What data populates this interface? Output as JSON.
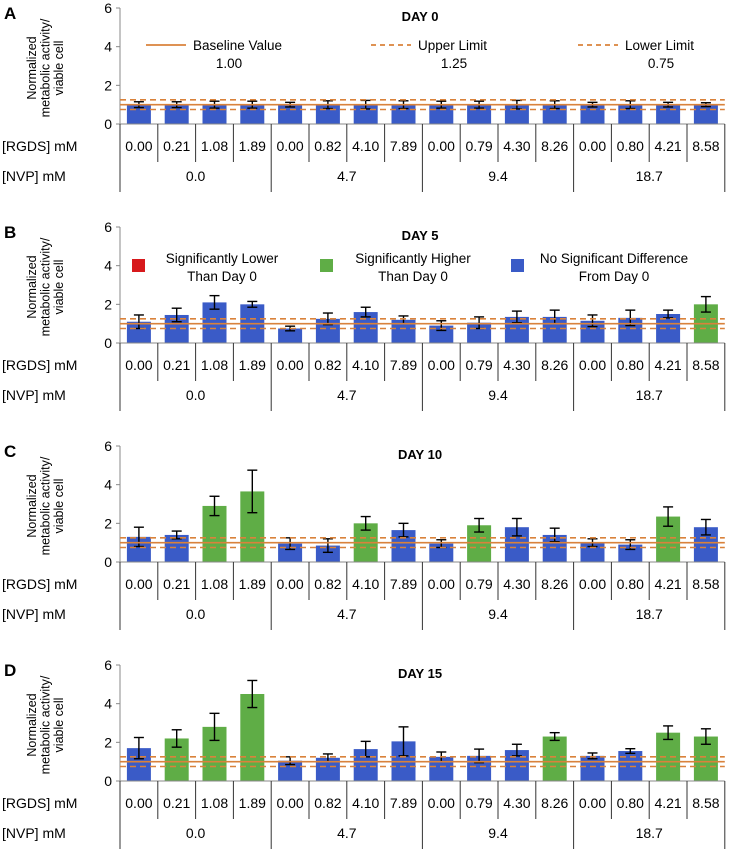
{
  "chart_data": {
    "type": "bar",
    "ylabel_lines": [
      "Normalized",
      "metabolic activity/",
      "viable cell"
    ],
    "ylim": [
      0,
      6
    ],
    "yticks": [
      0,
      2,
      4,
      6
    ],
    "row_labels": {
      "rgds": "[RGDS] mM",
      "nvp": "[NVP] mM"
    },
    "rgds": [
      "0.00",
      "0.21",
      "1.08",
      "1.89",
      "0.00",
      "0.82",
      "4.10",
      "7.89",
      "0.00",
      "0.79",
      "4.30",
      "8.26",
      "0.00",
      "0.80",
      "4.21",
      "8.58"
    ],
    "nvp": [
      "0.0",
      "4.7",
      "9.4",
      "18.7"
    ],
    "reference_lines": {
      "baseline": {
        "label": "Baseline Value",
        "value_label": "1.00",
        "value": 1.0
      },
      "upper": {
        "label": "Upper Limit",
        "value_label": "1.25",
        "value": 1.25
      },
      "lower": {
        "label": "Lower Limit",
        "value_label": "0.75",
        "value": 0.75
      }
    },
    "significance_legend": [
      {
        "key": "L",
        "lines": [
          "Significantly Lower",
          "Than Day 0"
        ],
        "color": "#d7191c"
      },
      {
        "key": "H",
        "lines": [
          "Significantly Higher",
          "Than Day 0"
        ],
        "color": "#5fad46"
      },
      {
        "key": "N",
        "lines": [
          "No Significant Difference",
          "From Day 0"
        ],
        "color": "#3a5bc7"
      }
    ],
    "panels": [
      {
        "letter": "A",
        "title": "DAY 0",
        "values": [
          1.0,
          1.0,
          1.0,
          1.0,
          1.0,
          1.0,
          1.0,
          1.0,
          1.0,
          1.0,
          1.0,
          1.0,
          1.0,
          1.0,
          1.0,
          1.0
        ],
        "errors": [
          0.15,
          0.15,
          0.18,
          0.18,
          0.12,
          0.2,
          0.22,
          0.2,
          0.18,
          0.18,
          0.22,
          0.2,
          0.12,
          0.2,
          0.12,
          0.1
        ],
        "sig": [
          "N",
          "N",
          "N",
          "N",
          "N",
          "N",
          "N",
          "N",
          "N",
          "N",
          "N",
          "N",
          "N",
          "N",
          "N",
          "N"
        ]
      },
      {
        "letter": "B",
        "title": "DAY 5",
        "values": [
          1.1,
          1.45,
          2.1,
          2.0,
          0.75,
          1.25,
          1.6,
          1.2,
          0.9,
          1.05,
          1.35,
          1.35,
          1.15,
          1.3,
          1.5,
          2.0
        ],
        "errors": [
          0.35,
          0.35,
          0.35,
          0.15,
          0.12,
          0.3,
          0.25,
          0.2,
          0.25,
          0.3,
          0.3,
          0.35,
          0.3,
          0.4,
          0.2,
          0.4
        ],
        "sig": [
          "N",
          "N",
          "N",
          "N",
          "N",
          "N",
          "N",
          "N",
          "N",
          "N",
          "N",
          "N",
          "N",
          "N",
          "N",
          "H"
        ]
      },
      {
        "letter": "C",
        "title": "DAY 10",
        "values": [
          1.3,
          1.4,
          2.9,
          3.65,
          0.95,
          0.85,
          2.0,
          1.65,
          0.95,
          1.9,
          1.8,
          1.4,
          1.0,
          0.9,
          2.35,
          1.8
        ],
        "errors": [
          0.5,
          0.2,
          0.5,
          1.1,
          0.3,
          0.35,
          0.35,
          0.35,
          0.2,
          0.35,
          0.45,
          0.35,
          0.2,
          0.25,
          0.5,
          0.4
        ],
        "sig": [
          "N",
          "N",
          "H",
          "H",
          "N",
          "N",
          "H",
          "N",
          "N",
          "H",
          "N",
          "N",
          "N",
          "N",
          "H",
          "N"
        ]
      },
      {
        "letter": "D",
        "title": "DAY 15",
        "values": [
          1.7,
          2.2,
          2.8,
          4.5,
          1.05,
          1.2,
          1.65,
          2.05,
          1.25,
          1.3,
          1.6,
          2.3,
          1.3,
          1.55,
          2.5,
          2.3
        ],
        "errors": [
          0.55,
          0.45,
          0.7,
          0.7,
          0.2,
          0.2,
          0.4,
          0.75,
          0.25,
          0.35,
          0.3,
          0.2,
          0.15,
          0.12,
          0.35,
          0.4
        ],
        "sig": [
          "N",
          "H",
          "H",
          "H",
          "N",
          "N",
          "N",
          "N",
          "N",
          "N",
          "N",
          "H",
          "N",
          "N",
          "H",
          "H"
        ]
      }
    ]
  }
}
